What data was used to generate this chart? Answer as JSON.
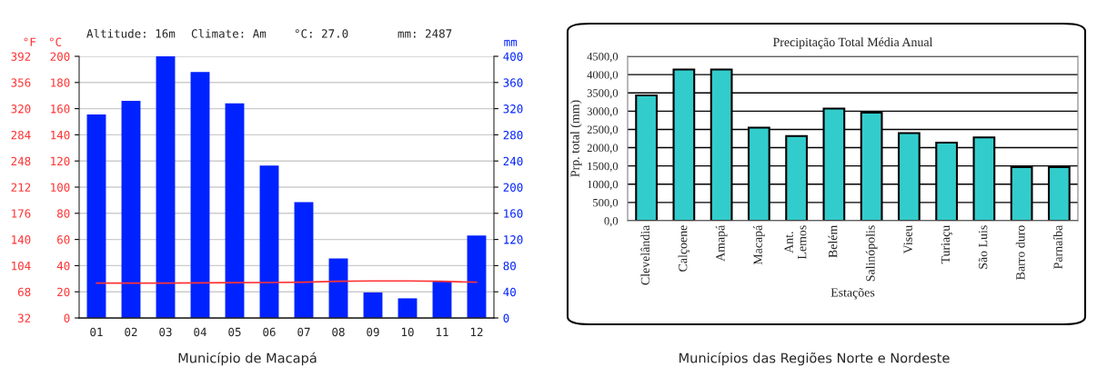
{
  "chart_data": [
    {
      "type": "bar",
      "categories": [
        "01",
        "02",
        "03",
        "04",
        "05",
        "06",
        "07",
        "08",
        "09",
        "10",
        "11",
        "12"
      ],
      "series": [
        {
          "type": "bar",
          "axis": "y2",
          "color": "#0022ff",
          "values": [
            311,
            332,
            400,
            376,
            328,
            233,
            177,
            91,
            39,
            30,
            56,
            126
          ]
        },
        {
          "type": "line",
          "color": "#ff3333",
          "values": [
            26.6,
            26.6,
            26.7,
            26.8,
            27.0,
            27.1,
            27.4,
            28.0,
            28.3,
            28.3,
            28.0,
            27.3
          ]
        }
      ],
      "ylabel": "°C",
      "y2label": "mm",
      "y3label": "°F",
      "ylim": [
        0,
        200
      ],
      "yticks": [
        0,
        20,
        40,
        60,
        80,
        100,
        120,
        140,
        160,
        180,
        200
      ],
      "y2lim": [
        0,
        400
      ],
      "y2ticks": [
        0,
        40,
        80,
        120,
        160,
        200,
        240,
        280,
        320,
        360,
        400
      ],
      "y3lim": [
        32,
        392
      ],
      "y3ticks": [
        32,
        68,
        104,
        140,
        176,
        212,
        248,
        284,
        320,
        356,
        392
      ],
      "grid": "y",
      "annotations": [
        "Altitude: 16m",
        "Climate: Am",
        "°C: 27.0",
        "mm: 2487",
        "Município de Macapá"
      ]
    },
    {
      "type": "bar",
      "title": "Precipitação Total Média Anual",
      "xlabel": "Estações",
      "ylabel": "Prp. total (mm)",
      "categories": [
        "Clevelândia",
        "Calçoene",
        "Amapá",
        "Macapá",
        "Ant.\nLemos",
        "Belém",
        "Salinópolis",
        "Viseu",
        "Turiaçu",
        "São Luis",
        "Barro duro",
        "Parnaíba"
      ],
      "values": [
        3430,
        4140,
        4140,
        2550,
        2320,
        3070,
        2960,
        2400,
        2140,
        2280,
        1470,
        1470
      ],
      "color": "#33cccc",
      "ylim": [
        0,
        4500
      ],
      "yticks": [
        {
          "value": 0,
          "label": "0,0"
        },
        {
          "value": 500,
          "label": "500,0"
        },
        {
          "value": 1000,
          "label": "1000,0"
        },
        {
          "value": 1500,
          "label": "1500,0"
        },
        {
          "value": 2000,
          "label": "2000,0"
        },
        {
          "value": 2500,
          "label": "2500,0"
        },
        {
          "value": 3000,
          "label": "3000,0"
        },
        {
          "value": 3500,
          "label": "3500,0"
        },
        {
          "value": 4000,
          "label": "4000,0"
        },
        {
          "value": 4500,
          "label": "4500,0"
        }
      ],
      "grid": "y",
      "annotations": [
        "Municípios das Regiões Norte e Nordeste"
      ]
    }
  ]
}
